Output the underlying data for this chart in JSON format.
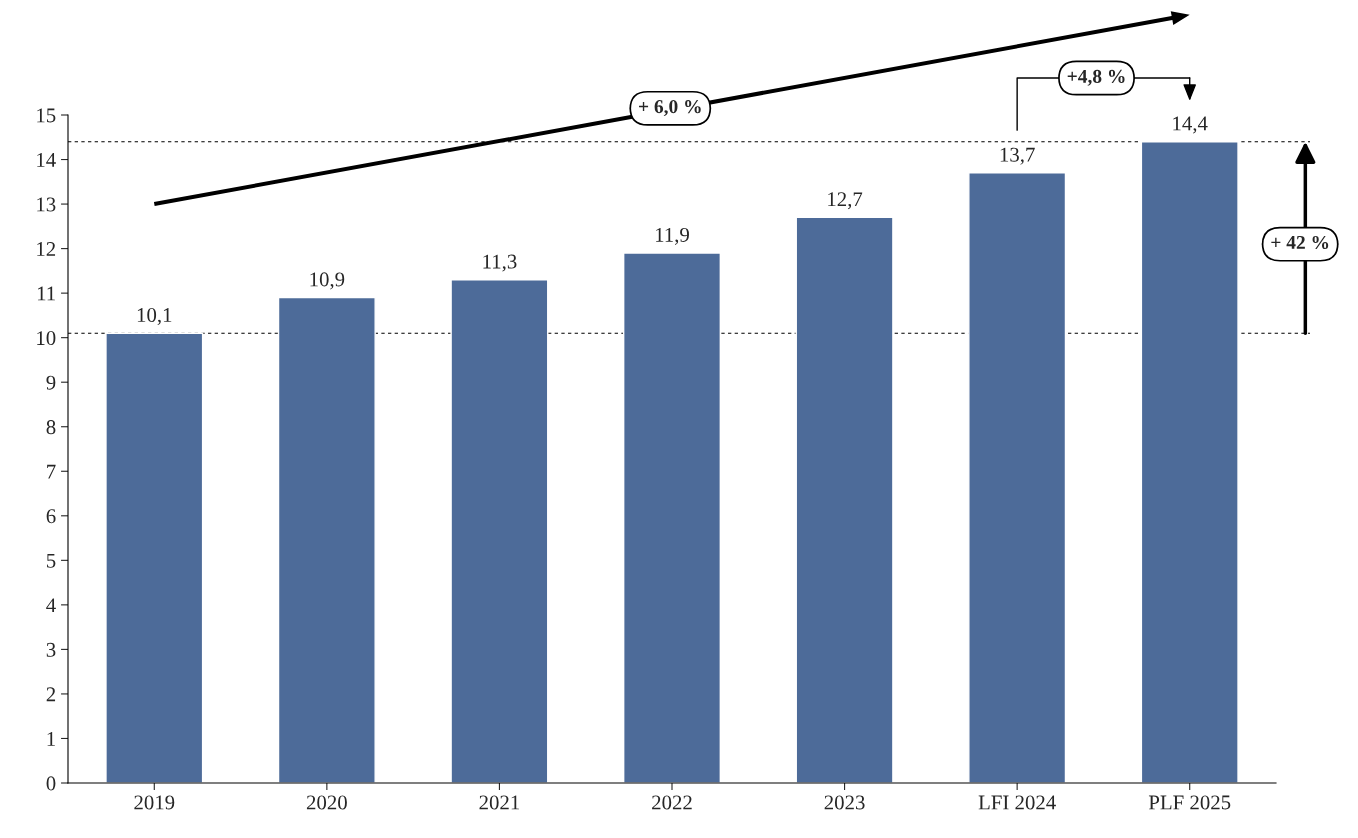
{
  "chart_data": {
    "type": "bar",
    "categories": [
      "2019",
      "2020",
      "2021",
      "2022",
      "2023",
      "LFI 2024",
      "PLF 2025"
    ],
    "values": [
      10.1,
      10.9,
      11.3,
      11.9,
      12.7,
      13.7,
      14.4
    ],
    "value_labels": [
      "10,1",
      "10,9",
      "11,3",
      "11,9",
      "12,7",
      "13,7",
      "14,4"
    ],
    "color": "#4d6b99",
    "ylim": [
      0,
      15
    ],
    "yticks": [
      0,
      1,
      2,
      3,
      4,
      5,
      6,
      7,
      8,
      9,
      10,
      11,
      12,
      13,
      14,
      15
    ],
    "grid": false,
    "ref_lines": [
      {
        "axis": "y",
        "value": 10.1,
        "line_style": "dashed",
        "color": "#000000"
      },
      {
        "axis": "y",
        "value": 14.4,
        "line_style": "dashed",
        "color": "#000000"
      }
    ],
    "annotations": [
      "+ 6,0 %",
      "+4,8 %",
      "+ 42 %"
    ]
  }
}
